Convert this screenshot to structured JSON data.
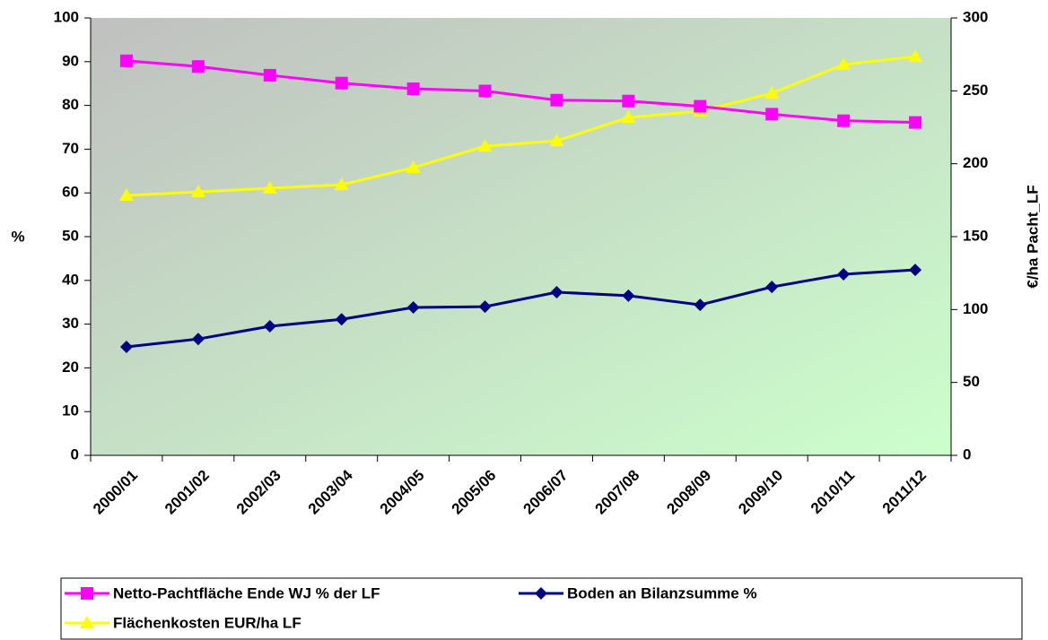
{
  "chart_data": {
    "type": "line",
    "categories": [
      "2000/01",
      "2001/02",
      "2002/03",
      "2003/04",
      "2004/05",
      "2005/06",
      "2006/07",
      "2007/08",
      "2008/09",
      "2009/10",
      "2010/11",
      "2011/12"
    ],
    "series": [
      {
        "name": "Netto-Pachtfläche Ende WJ % der LF",
        "color": "#ff00ff",
        "marker": "square",
        "axis": "y",
        "values": [
          90.2,
          88.9,
          86.9,
          85.1,
          83.8,
          83.3,
          81.2,
          81.0,
          79.8,
          78.0,
          76.5,
          76.1
        ]
      },
      {
        "name": "Boden an Bilanzsumme %",
        "color": "#000080",
        "marker": "diamond",
        "axis": "y",
        "values": [
          24.8,
          26.6,
          29.5,
          31.1,
          33.8,
          34.0,
          37.3,
          36.5,
          34.4,
          38.5,
          41.4,
          42.4
        ]
      },
      {
        "name": "Flächenkosten EUR/ha LF",
        "color": "#ffff00",
        "marker": "triangle",
        "axis": "y2",
        "values": [
          178.2,
          180.7,
          183.2,
          185.6,
          197.3,
          212.0,
          215.7,
          231.7,
          236.0,
          248.3,
          268.0,
          273.5
        ]
      }
    ],
    "ylabel": "%",
    "y2label": "€/ha Pacht_LF",
    "ylim": [
      0,
      100
    ],
    "yticks": [
      0,
      10,
      20,
      30,
      40,
      50,
      60,
      70,
      80,
      90,
      100
    ],
    "y2lim": [
      0,
      300
    ],
    "y2ticks": [
      0,
      50,
      100,
      150,
      200,
      250,
      300
    ],
    "legend": "bottom"
  }
}
